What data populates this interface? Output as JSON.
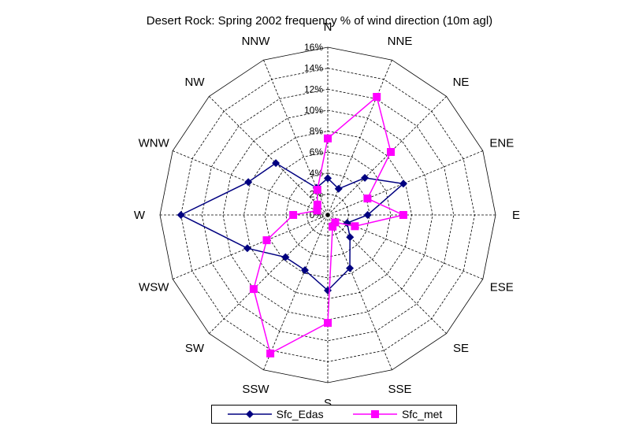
{
  "chart_data": {
    "type": "radar",
    "title": "Desert Rock: Spring 2002 frequency % of wind direction (10m agl)",
    "categories": [
      "N",
      "NNE",
      "NE",
      "ENE",
      "E",
      "ESE",
      "SE",
      "SSE",
      "S",
      "SSW",
      "SW",
      "WSW",
      "W",
      "WNW",
      "NW",
      "NNW"
    ],
    "rlim": [
      0,
      16
    ],
    "ticks": [
      "0%",
      "2%",
      "4%",
      "6%",
      "8%",
      "10%",
      "12%",
      "14%",
      "16%"
    ],
    "grid": true,
    "legend_position": "bottom",
    "series": [
      {
        "name": "Sfc_Edas",
        "color": "#000080",
        "marker": "diamond",
        "values": [
          3.5,
          2.7,
          5.0,
          7.8,
          3.8,
          2.0,
          3.0,
          5.5,
          7.2,
          5.7,
          5.7,
          8.3,
          14.0,
          8.2,
          7.0,
          2.8
        ]
      },
      {
        "name": "Sfc_met",
        "color": "#ff00ff",
        "marker": "square",
        "values": [
          7.3,
          12.2,
          8.5,
          4.1,
          7.2,
          2.8,
          1.0,
          1.2,
          10.3,
          14.3,
          10.0,
          6.3,
          3.3,
          1.1,
          1.4,
          2.6
        ]
      }
    ]
  }
}
